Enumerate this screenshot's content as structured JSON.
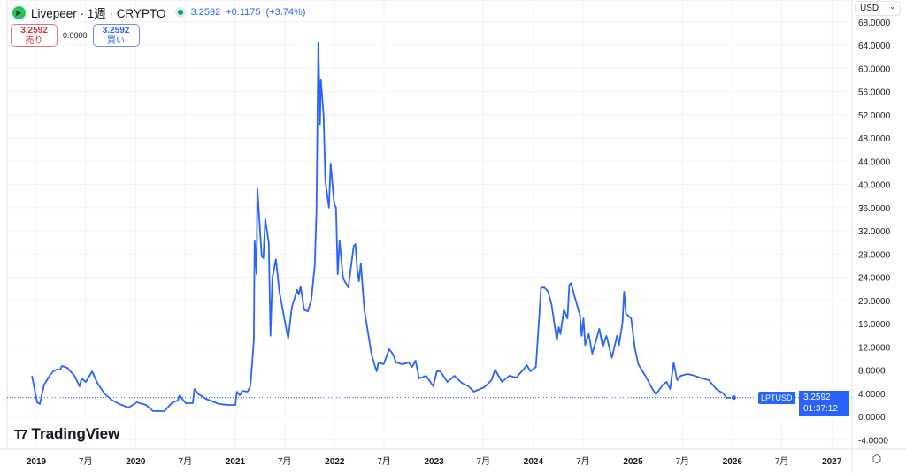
{
  "header": {
    "symbol_name": "Livepeer",
    "interval": "1週",
    "exchange": "CRYPTO",
    "title": "Livepeer · 1週 · CRYPTO",
    "last_price": "3.2592",
    "change": "+0.1175",
    "change_pct": "(+3.74%)",
    "icon": "livepeer-logo-icon",
    "status_icon": "market-open-dot-icon"
  },
  "trade": {
    "sell_price": "3.2592",
    "sell_label": "売り",
    "spread": "0.0000",
    "buy_price": "3.2592",
    "buy_label": "買い"
  },
  "currency": {
    "label": "USD",
    "icon": "chevron-down-icon"
  },
  "brand": "TradingView",
  "price_label": {
    "symbol": "LPTUSD",
    "price": "3.2592",
    "countdown": "01:37:12"
  },
  "colors": {
    "line": "#2962ff",
    "grid": "#f0f3fa",
    "sell": "#d6303a",
    "buy": "#2962ff",
    "accent": "#2962ff"
  },
  "chart_data": {
    "type": "line",
    "ylim": [
      -4,
      68
    ],
    "xlim": [
      "2018-12-10",
      "2027-03-01"
    ],
    "grid": true,
    "y_ticks": [
      "68.0000",
      "64.0000",
      "60.0000",
      "56.0000",
      "52.0000",
      "48.0000",
      "44.0000",
      "40.0000",
      "36.0000",
      "32.0000",
      "28.0000",
      "24.0000",
      "20.0000",
      "16.0000",
      "12.0000",
      "8.0000",
      "4.0000",
      "0.0000",
      "-4.0000"
    ],
    "y_tick_values": [
      68,
      64,
      60,
      56,
      52,
      48,
      44,
      40,
      36,
      32,
      28,
      24,
      20,
      16,
      12,
      8,
      4,
      0,
      -4
    ],
    "x_ticks": [
      {
        "label": "2019",
        "date": "2019-01-01",
        "major": true
      },
      {
        "label": "7月",
        "date": "2019-07-01"
      },
      {
        "label": "2020",
        "date": "2020-01-01",
        "major": true
      },
      {
        "label": "7月",
        "date": "2020-07-01"
      },
      {
        "label": "2021",
        "date": "2021-01-01",
        "major": true
      },
      {
        "label": "7月",
        "date": "2021-07-01"
      },
      {
        "label": "2022",
        "date": "2022-01-01",
        "major": true
      },
      {
        "label": "7月",
        "date": "2022-07-01"
      },
      {
        "label": "2023",
        "date": "2023-01-01",
        "major": true
      },
      {
        "label": "7月",
        "date": "2023-07-01"
      },
      {
        "label": "2024",
        "date": "2024-01-01",
        "major": true
      },
      {
        "label": "7月",
        "date": "2024-07-01"
      },
      {
        "label": "2025",
        "date": "2025-01-01",
        "major": true
      },
      {
        "label": "7月",
        "date": "2025-07-01"
      },
      {
        "label": "2026",
        "date": "2026-01-01",
        "major": true
      },
      {
        "label": "7月",
        "date": "2026-07-01"
      },
      {
        "label": "2027",
        "date": "2027-01-01",
        "major": true
      }
    ],
    "last_value": 3.2592,
    "series": [
      {
        "points": [
          [
            "2018-12-16",
            7.0
          ],
          [
            "2019-01-04",
            2.44
          ],
          [
            "2019-01-14",
            2.13
          ],
          [
            "2019-01-30",
            5.49
          ],
          [
            "2019-02-19",
            7.01
          ],
          [
            "2019-03-04",
            7.77
          ],
          [
            "2019-03-17",
            8.08
          ],
          [
            "2019-03-30",
            8.08
          ],
          [
            "2019-04-05",
            8.69
          ],
          [
            "2019-04-25",
            8.38
          ],
          [
            "2019-05-21",
            7.01
          ],
          [
            "2019-06-09",
            5.18
          ],
          [
            "2019-06-16",
            6.55
          ],
          [
            "2019-07-02",
            5.94
          ],
          [
            "2019-07-25",
            7.77
          ],
          [
            "2019-08-13",
            5.79
          ],
          [
            "2019-09-08",
            3.96
          ],
          [
            "2019-10-04",
            2.9
          ],
          [
            "2019-11-02",
            2.13
          ],
          [
            "2019-12-05",
            1.52
          ],
          [
            "2020-01-06",
            2.44
          ],
          [
            "2020-02-08",
            1.98
          ],
          [
            "2020-03-05",
            0.91
          ],
          [
            "2020-04-16",
            0.91
          ],
          [
            "2020-05-15",
            2.44
          ],
          [
            "2020-06-04",
            2.74
          ],
          [
            "2020-06-10",
            3.66
          ],
          [
            "2020-07-03",
            2.29
          ],
          [
            "2020-07-29",
            2.29
          ],
          [
            "2020-08-04",
            4.72
          ],
          [
            "2020-08-20",
            3.81
          ],
          [
            "2020-09-15",
            3.05
          ],
          [
            "2020-11-03",
            2.13
          ],
          [
            "2020-12-06",
            1.98
          ],
          [
            "2021-01-01",
            1.98
          ],
          [
            "2021-01-07",
            4.27
          ],
          [
            "2021-01-17",
            3.66
          ],
          [
            "2021-01-27",
            4.42
          ],
          [
            "2021-02-15",
            4.27
          ],
          [
            "2021-02-25",
            5.18
          ],
          [
            "2021-03-03",
            8.53
          ],
          [
            "2021-03-10",
            13.1
          ],
          [
            "2021-03-13",
            30.2
          ],
          [
            "2021-03-20",
            24.5
          ],
          [
            "2021-03-23",
            39.3
          ],
          [
            "2021-04-08",
            27.6
          ],
          [
            "2021-04-14",
            27.3
          ],
          [
            "2021-04-21",
            34.0
          ],
          [
            "2021-05-04",
            29.9
          ],
          [
            "2021-05-10",
            13.9
          ],
          [
            "2021-05-17",
            23.8
          ],
          [
            "2021-05-30",
            27.1
          ],
          [
            "2021-06-12",
            21.5
          ],
          [
            "2021-07-01",
            16.6
          ],
          [
            "2021-07-14",
            13.4
          ],
          [
            "2021-07-27",
            18.7
          ],
          [
            "2021-08-16",
            21.8
          ],
          [
            "2021-08-22",
            21.0
          ],
          [
            "2021-08-29",
            22.4
          ],
          [
            "2021-09-11",
            18.4
          ],
          [
            "2021-09-24",
            18.1
          ],
          [
            "2021-10-07",
            20.0
          ],
          [
            "2021-10-20",
            26.1
          ],
          [
            "2021-10-26",
            35.2
          ],
          [
            "2021-11-02",
            64.5
          ],
          [
            "2021-11-08",
            50.4
          ],
          [
            "2021-11-11",
            58.1
          ],
          [
            "2021-11-21",
            52.0
          ],
          [
            "2021-11-28",
            40.5
          ],
          [
            "2021-12-11",
            36.0
          ],
          [
            "2021-12-17",
            43.6
          ],
          [
            "2021-12-30",
            36.7
          ],
          [
            "2022-01-06",
            36.0
          ],
          [
            "2022-01-12",
            24.5
          ],
          [
            "2022-01-19",
            30.3
          ],
          [
            "2022-02-01",
            23.8
          ],
          [
            "2022-02-20",
            22.2
          ],
          [
            "2022-03-12",
            29.4
          ],
          [
            "2022-03-18",
            29.7
          ],
          [
            "2022-03-25",
            25.3
          ],
          [
            "2022-03-31",
            23.3
          ],
          [
            "2022-04-07",
            26.4
          ],
          [
            "2022-04-20",
            18.4
          ],
          [
            "2022-05-03",
            14.6
          ],
          [
            "2022-05-16",
            10.8
          ],
          [
            "2022-05-29",
            8.69
          ],
          [
            "2022-06-04",
            7.77
          ],
          [
            "2022-06-11",
            9.3
          ],
          [
            "2022-06-30",
            8.99
          ],
          [
            "2022-07-20",
            11.6
          ],
          [
            "2022-08-02",
            10.8
          ],
          [
            "2022-08-15",
            9.3
          ],
          [
            "2022-09-06",
            8.99
          ],
          [
            "2022-09-29",
            9.3
          ],
          [
            "2022-10-12",
            8.53
          ],
          [
            "2022-10-25",
            9.6
          ],
          [
            "2022-11-07",
            6.55
          ],
          [
            "2022-12-03",
            7.01
          ],
          [
            "2022-12-29",
            5.18
          ],
          [
            "2023-01-11",
            7.77
          ],
          [
            "2023-01-24",
            7.77
          ],
          [
            "2023-02-19",
            5.94
          ],
          [
            "2023-03-17",
            7.01
          ],
          [
            "2023-04-12",
            5.79
          ],
          [
            "2023-05-08",
            5.18
          ],
          [
            "2023-05-27",
            4.27
          ],
          [
            "2023-07-05",
            5.03
          ],
          [
            "2023-07-31",
            6.25
          ],
          [
            "2023-08-13",
            8.08
          ],
          [
            "2023-09-08",
            5.94
          ],
          [
            "2023-10-04",
            7.01
          ],
          [
            "2023-10-30",
            6.7
          ],
          [
            "2023-11-25",
            8.08
          ],
          [
            "2023-12-08",
            8.84
          ],
          [
            "2023-12-21",
            7.77
          ],
          [
            "2024-01-10",
            8.53
          ],
          [
            "2024-01-23",
            17.7
          ],
          [
            "2024-01-29",
            22.2
          ],
          [
            "2024-02-11",
            22.2
          ],
          [
            "2024-02-24",
            21.5
          ],
          [
            "2024-03-08",
            19.2
          ],
          [
            "2024-03-27",
            13.1
          ],
          [
            "2024-04-03",
            15.4
          ],
          [
            "2024-04-09",
            14.2
          ],
          [
            "2024-04-22",
            18.4
          ],
          [
            "2024-05-05",
            16.9
          ],
          [
            "2024-05-12",
            22.7
          ],
          [
            "2024-05-18",
            23.0
          ],
          [
            "2024-05-31",
            20.7
          ],
          [
            "2024-06-20",
            17.5
          ],
          [
            "2024-06-26",
            13.9
          ],
          [
            "2024-07-03",
            16.9
          ],
          [
            "2024-07-09",
            12.3
          ],
          [
            "2024-07-22",
            14.2
          ],
          [
            "2024-08-04",
            10.8
          ],
          [
            "2024-08-30",
            15.1
          ],
          [
            "2024-09-12",
            12.0
          ],
          [
            "2024-09-25",
            13.9
          ],
          [
            "2024-10-15",
            10.1
          ],
          [
            "2024-11-03",
            13.9
          ],
          [
            "2024-11-10",
            12.3
          ],
          [
            "2024-11-23",
            16.2
          ],
          [
            "2024-11-29",
            21.5
          ],
          [
            "2024-12-06",
            17.7
          ],
          [
            "2024-12-25",
            16.9
          ],
          [
            "2025-01-07",
            11.9
          ],
          [
            "2025-01-20",
            8.99
          ],
          [
            "2025-02-15",
            7.01
          ],
          [
            "2025-03-13",
            4.72
          ],
          [
            "2025-03-26",
            3.81
          ],
          [
            "2025-04-21",
            5.49
          ],
          [
            "2025-05-04",
            5.94
          ],
          [
            "2025-05-17",
            4.72
          ],
          [
            "2025-05-30",
            9.3
          ],
          [
            "2025-06-12",
            6.25
          ],
          [
            "2025-06-25",
            7.01
          ],
          [
            "2025-07-21",
            7.31
          ],
          [
            "2025-08-16",
            7.01
          ],
          [
            "2025-09-11",
            6.55
          ],
          [
            "2025-10-07",
            6.25
          ],
          [
            "2025-11-02",
            4.72
          ],
          [
            "2025-11-28",
            3.96
          ],
          [
            "2025-12-11",
            3.2
          ],
          [
            "2026-01-06",
            3.26
          ]
        ]
      }
    ]
  }
}
